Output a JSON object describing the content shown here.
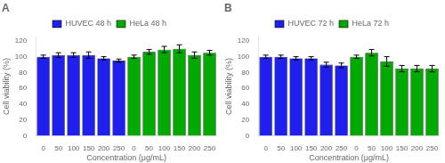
{
  "chart_data": [
    {
      "type": "bar",
      "title": "A",
      "xlabel": "Concentration (μg/mL)",
      "ylabel": "Cell viability (%)",
      "categories": [
        "0",
        "50",
        "100",
        "150",
        "200",
        "250",
        "0",
        "50",
        "100",
        "150",
        "200",
        "250"
      ],
      "series": [
        {
          "name": "HUVEC 48 h",
          "color": "#2020ee",
          "values": [
            100,
            102,
            102,
            102,
            98,
            95,
            null,
            null,
            null,
            null,
            null,
            null
          ],
          "errors": [
            2,
            3,
            3,
            4,
            2,
            2,
            null,
            null,
            null,
            null,
            null,
            null
          ]
        },
        {
          "name": "HeLa 48 h",
          "color": "#00aa00",
          "values": [
            null,
            null,
            null,
            null,
            null,
            null,
            100,
            106,
            109,
            110,
            102,
            105
          ],
          "errors": [
            null,
            null,
            null,
            null,
            null,
            null,
            2,
            3,
            4,
            5,
            4,
            3
          ]
        }
      ],
      "ylim": [
        0,
        125
      ],
      "yticks": [
        0,
        20,
        40,
        60,
        80,
        100,
        120
      ],
      "grid": false,
      "legend": "upper center"
    },
    {
      "type": "bar",
      "title": "B",
      "xlabel": "Concentration (μg/mL)",
      "ylabel": "Cell viability (%)",
      "categories": [
        "0",
        "50",
        "100",
        "150",
        "200",
        "250",
        "0",
        "50",
        "100",
        "150",
        "200",
        "250"
      ],
      "series": [
        {
          "name": "HUVEC 72 h",
          "color": "#2020ee",
          "values": [
            100,
            100,
            98,
            98,
            90,
            89,
            null,
            null,
            null,
            null,
            null,
            null
          ],
          "errors": [
            2,
            2,
            2,
            2,
            3,
            3,
            null,
            null,
            null,
            null,
            null,
            null
          ]
        },
        {
          "name": "HeLa 72 h",
          "color": "#00aa00",
          "values": [
            null,
            null,
            null,
            null,
            null,
            null,
            100,
            105,
            94,
            85,
            85,
            85
          ],
          "errors": [
            null,
            null,
            null,
            null,
            null,
            null,
            2,
            4,
            6,
            4,
            4,
            4
          ]
        }
      ],
      "ylim": [
        0,
        125
      ],
      "yticks": [
        0,
        20,
        40,
        60,
        80,
        100,
        120
      ],
      "grid": false,
      "legend": "upper center"
    }
  ]
}
